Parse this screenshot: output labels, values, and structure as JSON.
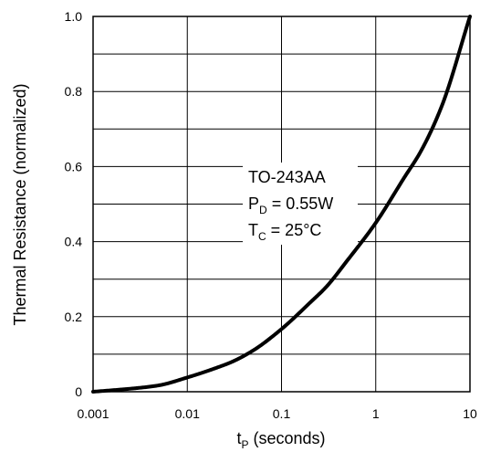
{
  "chart_data": {
    "type": "line",
    "x_scale": "log",
    "xlim": [
      0.001,
      10
    ],
    "ylim": [
      0,
      1.0
    ],
    "grid": true,
    "xticks": [
      "0.001",
      "0.01",
      "0.1",
      "1",
      "10"
    ],
    "yticks": [
      "0",
      "0.2",
      "0.4",
      "0.6",
      "0.8",
      "1.0"
    ],
    "xlabel": {
      "main": "t",
      "sub": "P",
      "rest": " (seconds)"
    },
    "ylabel": "Thermal Resistance (normalized)",
    "annotation": {
      "line1": "TO-243AA",
      "line2_main": "P",
      "line2_sub": "D",
      "line2_rest": " = 0.55W",
      "line3_main": "T",
      "line3_sub": "C",
      "line3_rest": " = 25°C"
    },
    "series": [
      {
        "x": [
          0.001,
          0.002,
          0.003,
          0.005,
          0.01,
          0.02,
          0.03,
          0.05,
          0.1,
          0.2,
          0.3,
          0.5,
          1,
          2,
          3,
          5,
          10
        ],
        "y": [
          0.0,
          0.006,
          0.01,
          0.017,
          0.038,
          0.063,
          0.08,
          0.11,
          0.167,
          0.237,
          0.28,
          0.35,
          0.45,
          0.57,
          0.64,
          0.76,
          1.0
        ]
      }
    ]
  }
}
